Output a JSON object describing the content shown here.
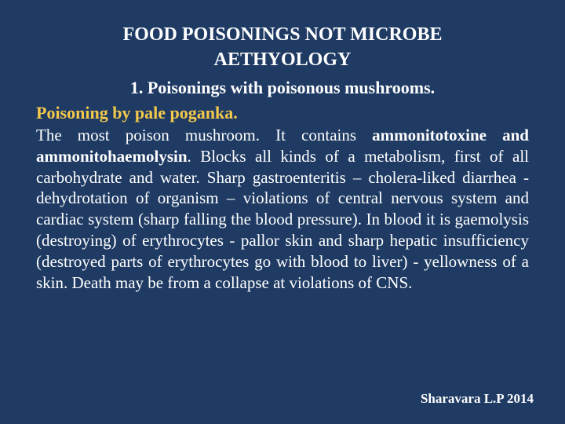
{
  "colors": {
    "background": "#1f3b64",
    "text": "#ffffff",
    "highlight": "#f5c94a"
  },
  "typography": {
    "family": "Times New Roman",
    "title_size_pt": 24,
    "subheading_size_pt": 22,
    "highlight_size_pt": 22,
    "body_size_pt": 21,
    "footer_size_pt": 17
  },
  "title": {
    "line1": "FOOD POISONINGS NOT MICROBE",
    "line2": "AETHYOLOGY"
  },
  "subheading": "1. Poisonings with poisonous mushrooms.",
  "highlight": "Poisoning by pale poganka.",
  "body": {
    "seg1": "The most poison mushroom. It contains ",
    "seg2_bold": "ammonitotoxine and ammonitohaemolysin",
    "seg3": ". Blocks all kinds of a metabolism, first of all carbohydrate and water. Sharp gastroenteritis – cholera-liked diarrhea - dehydrotation of organism – violations of central nervous system and cardiac system (sharp falling the blood pressure). In blood it is                  gaemolysis (destroying) of erythrocytes - pallor skin and sharp hepatic insufficiency (destroyed parts of erythrocytes go with blood to liver) - yellowness of a skin. Death may be from a collapse at violations of CNS."
  },
  "footer": "Sharavara L.P 2014"
}
